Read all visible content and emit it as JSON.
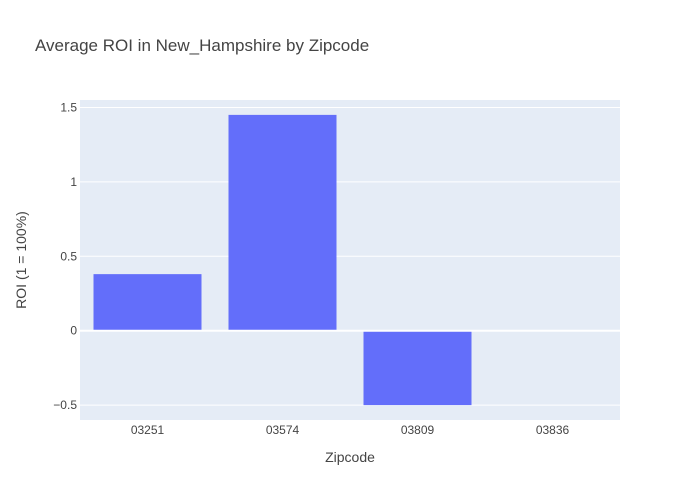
{
  "chart_data": {
    "type": "bar",
    "title": "Average ROI in New_Hampshire by Zipcode",
    "xlabel": "Zipcode",
    "ylabel": "ROI (1 = 100%)",
    "categories": [
      "03251",
      "03574",
      "03809",
      "03836"
    ],
    "values": [
      0.38,
      1.45,
      -0.5,
      0
    ],
    "ylim": [
      -0.6,
      1.55
    ],
    "yticks": [
      -0.5,
      0,
      0.5,
      1,
      1.5
    ],
    "ytick_labels": [
      "−0.5",
      "0",
      "0.5",
      "1",
      "1.5"
    ],
    "grid": true,
    "colors": {
      "bar": "#636efa",
      "plot_bg": "#e5ecf6",
      "grid": "#ffffff",
      "text": "#444444"
    }
  }
}
